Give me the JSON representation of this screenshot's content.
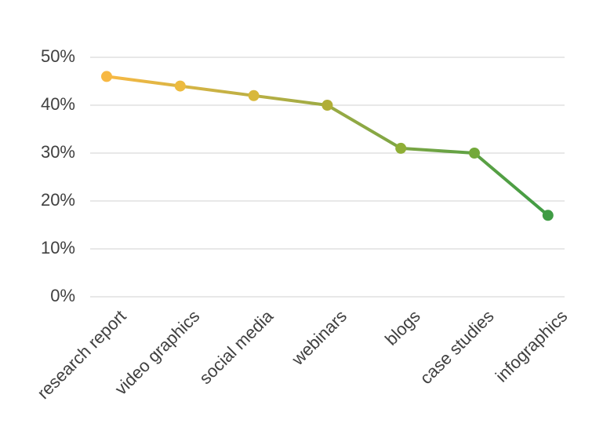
{
  "chart_data": {
    "type": "line",
    "categories": [
      "research report",
      "video graphics",
      "social media",
      "webinars",
      "blogs",
      "case studies",
      "infographics"
    ],
    "values": [
      46,
      44,
      42,
      40,
      31,
      30,
      17
    ],
    "point_colors": [
      "#f7b843",
      "#edbb3f",
      "#d8b83b",
      "#b0ae36",
      "#8fae36",
      "#73a93a",
      "#3f9c44"
    ],
    "line_gradient": [
      "#f8b944",
      "#3f9c44"
    ],
    "ylim": [
      0,
      50
    ],
    "yticks": [
      {
        "value": 0,
        "label": "0%"
      },
      {
        "value": 10,
        "label": "10%"
      },
      {
        "value": 20,
        "label": "20%"
      },
      {
        "value": 30,
        "label": "30%"
      },
      {
        "value": 40,
        "label": "40%"
      },
      {
        "value": 50,
        "label": "50%"
      }
    ],
    "grid": true
  }
}
